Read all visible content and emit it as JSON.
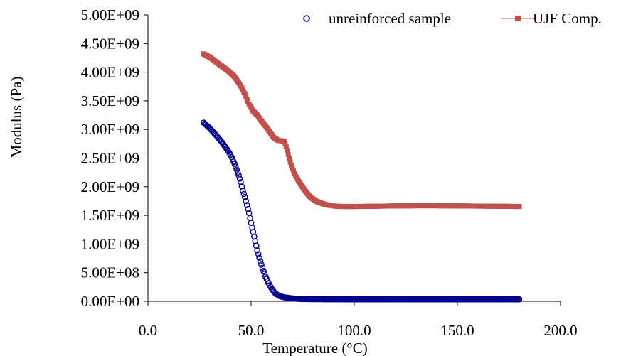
{
  "chart_data": {
    "type": "scatter",
    "title": "",
    "xlabel": "Temperature (°C)",
    "ylabel": "Modulus (Pa)",
    "xlim": [
      0,
      200
    ],
    "ylim": [
      0,
      5000000000
    ],
    "x_ticks": [
      0,
      50,
      100,
      150,
      200
    ],
    "x_tick_labels": [
      "0.0",
      "50.0",
      "100.0",
      "150.0",
      "200.0"
    ],
    "y_ticks": [
      0,
      500000000,
      1000000000,
      1500000000,
      2000000000,
      2500000000,
      3000000000,
      3500000000,
      4000000000,
      4500000000,
      5000000000
    ],
    "y_tick_labels": [
      "0.00E+00",
      "5.00E+08",
      "1.00E+09",
      "1.50E+09",
      "2.00E+09",
      "2.50E+09",
      "3.00E+09",
      "3.50E+09",
      "4.00E+09",
      "4.50E+09",
      "5.00E+09"
    ],
    "grid": false,
    "legend_position": "top-right",
    "series": [
      {
        "name": "unreinforced sample",
        "marker": "hollow-circle",
        "color": "#00008b",
        "x": [
          27,
          30,
          33,
          36,
          38,
          40,
          42,
          44,
          45,
          46,
          47,
          48,
          49,
          50,
          51,
          52,
          53,
          54,
          55,
          56,
          57,
          58,
          59,
          60,
          61,
          62,
          64,
          66,
          68,
          70,
          72,
          75,
          80,
          90,
          100,
          120,
          140,
          160,
          180
        ],
        "y": [
          3120000000,
          3020000000,
          2900000000,
          2770000000,
          2670000000,
          2560000000,
          2400000000,
          2200000000,
          2080000000,
          1930000000,
          1820000000,
          1680000000,
          1540000000,
          1370000000,
          1210000000,
          1050000000,
          890000000,
          760000000,
          640000000,
          530000000,
          430000000,
          350000000,
          280000000,
          220000000,
          170000000,
          130000000,
          90000000,
          70000000,
          60000000,
          50000000,
          45000000,
          40000000,
          38000000,
          36000000,
          35000000,
          35000000,
          35000000,
          35000000,
          35000000
        ]
      },
      {
        "name": "UJF Comp.",
        "marker": "square-line",
        "color": "#c0504d",
        "x": [
          27,
          30,
          33,
          36,
          39,
          42,
          45,
          47,
          49,
          51,
          53,
          55,
          57,
          59,
          61,
          63,
          65,
          66,
          67,
          68,
          69,
          70,
          71,
          73,
          75,
          77,
          79,
          82,
          85,
          88,
          91,
          95,
          100,
          110,
          120,
          130,
          140,
          150,
          160,
          170,
          180
        ],
        "y": [
          4320000000,
          4260000000,
          4180000000,
          4100000000,
          4020000000,
          3920000000,
          3760000000,
          3620000000,
          3440000000,
          3320000000,
          3250000000,
          3150000000,
          3060000000,
          2960000000,
          2860000000,
          2810000000,
          2800000000,
          2790000000,
          2700000000,
          2560000000,
          2430000000,
          2320000000,
          2230000000,
          2100000000,
          1990000000,
          1890000000,
          1810000000,
          1740000000,
          1700000000,
          1675000000,
          1660000000,
          1655000000,
          1655000000,
          1660000000,
          1665000000,
          1668000000,
          1668000000,
          1665000000,
          1662000000,
          1660000000,
          1655000000
        ]
      }
    ]
  }
}
